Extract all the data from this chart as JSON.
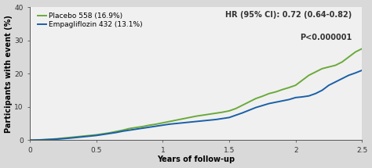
{
  "placebo_x": [
    0,
    0.05,
    0.1,
    0.15,
    0.2,
    0.25,
    0.3,
    0.35,
    0.4,
    0.45,
    0.5,
    0.55,
    0.6,
    0.65,
    0.7,
    0.75,
    0.8,
    0.85,
    0.9,
    0.95,
    1.0,
    1.05,
    1.1,
    1.15,
    1.2,
    1.25,
    1.3,
    1.35,
    1.4,
    1.45,
    1.5,
    1.55,
    1.6,
    1.65,
    1.7,
    1.75,
    1.8,
    1.85,
    1.9,
    1.95,
    2.0,
    2.05,
    2.1,
    2.15,
    2.2,
    2.25,
    2.3,
    2.35,
    2.4,
    2.45,
    2.5
  ],
  "placebo_y": [
    0,
    0.05,
    0.15,
    0.25,
    0.4,
    0.6,
    0.8,
    1.0,
    1.2,
    1.4,
    1.6,
    1.9,
    2.2,
    2.6,
    3.0,
    3.5,
    3.8,
    4.1,
    4.5,
    4.8,
    5.2,
    5.6,
    6.0,
    6.4,
    6.8,
    7.2,
    7.5,
    7.8,
    8.1,
    8.4,
    8.8,
    9.5,
    10.5,
    11.5,
    12.5,
    13.2,
    14.0,
    14.5,
    15.2,
    15.8,
    16.5,
    18.0,
    19.5,
    20.5,
    21.5,
    22.0,
    22.5,
    23.5,
    25.0,
    26.5,
    27.5
  ],
  "empa_x": [
    0,
    0.05,
    0.1,
    0.15,
    0.2,
    0.25,
    0.3,
    0.35,
    0.4,
    0.45,
    0.5,
    0.55,
    0.6,
    0.65,
    0.7,
    0.75,
    0.8,
    0.85,
    0.9,
    0.95,
    1.0,
    1.05,
    1.1,
    1.15,
    1.2,
    1.25,
    1.3,
    1.35,
    1.4,
    1.45,
    1.5,
    1.55,
    1.6,
    1.65,
    1.7,
    1.75,
    1.8,
    1.85,
    1.9,
    1.95,
    2.0,
    2.05,
    2.1,
    2.15,
    2.2,
    2.25,
    2.3,
    2.35,
    2.4,
    2.45,
    2.5
  ],
  "empa_y": [
    0,
    0.03,
    0.1,
    0.2,
    0.3,
    0.45,
    0.6,
    0.8,
    1.0,
    1.2,
    1.4,
    1.7,
    2.0,
    2.3,
    2.7,
    3.0,
    3.3,
    3.6,
    3.9,
    4.2,
    4.5,
    4.8,
    5.0,
    5.2,
    5.4,
    5.6,
    5.8,
    6.0,
    6.2,
    6.5,
    6.8,
    7.5,
    8.2,
    9.0,
    9.8,
    10.4,
    11.0,
    11.4,
    11.8,
    12.2,
    12.8,
    13.0,
    13.3,
    14.0,
    15.0,
    16.5,
    17.5,
    18.5,
    19.5,
    20.2,
    21.0
  ],
  "placebo_color": "#6aaa3a",
  "empa_color": "#1a5fa8",
  "placebo_label": "Placebo 558 (16.9%)",
  "empa_label": "Empagliflozin 432 (13.1%)",
  "hr_text": "HR (95% CI): 0.72 (0.64-0.82)",
  "p_text": "P<0.000001",
  "xlabel": "Years of follow-up",
  "ylabel": "Participants with event (%)",
  "xlim": [
    0,
    2.5
  ],
  "ylim": [
    0,
    40
  ],
  "xticks": [
    0,
    0.5,
    1,
    1.5,
    2,
    2.5
  ],
  "xtick_labels": [
    "0",
    "0.5",
    "1",
    "1.5",
    "2",
    "2.5"
  ],
  "yticks": [
    0,
    10,
    20,
    30,
    40
  ],
  "background_color": "#d9d9d9",
  "plot_bg_color": "#f0f0f0",
  "linewidth": 1.4,
  "fontsize_labels": 7.0,
  "fontsize_ticks": 6.5,
  "fontsize_legend": 6.5,
  "fontsize_annot": 7.0
}
